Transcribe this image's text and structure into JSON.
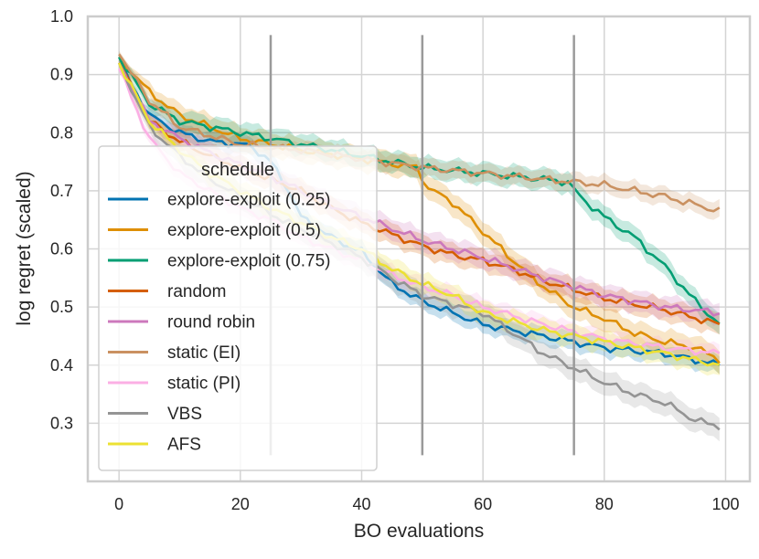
{
  "chart_data": {
    "type": "line",
    "title": "",
    "xlabel": "BO evaluations",
    "ylabel": "log regret (scaled)",
    "xlim": [
      -5,
      104
    ],
    "ylim": [
      0.2,
      1.0
    ],
    "xticks": [
      0,
      20,
      40,
      60,
      80,
      100
    ],
    "yticks": [
      0.3,
      0.4,
      0.5,
      0.6,
      0.7,
      0.8,
      0.9,
      1.0
    ],
    "xtick_labels": [
      "0",
      "20",
      "40",
      "60",
      "80",
      "100"
    ],
    "ytick_labels": [
      "0.3",
      "0.4",
      "0.5",
      "0.6",
      "0.7",
      "0.8",
      "0.9",
      "1.0"
    ],
    "grid": true,
    "vlines": {
      "x": [
        25,
        50,
        75
      ],
      "ymin": 0.245,
      "ymax": 0.968,
      "color": "#9a9a9a"
    },
    "legend": {
      "title": "schedule",
      "position": "lower-left"
    },
    "series": [
      {
        "name": "explore-exploit (0.25)",
        "color": "#0173b2",
        "band": 0.015,
        "points": [
          [
            0,
            0.92
          ],
          [
            5,
            0.83
          ],
          [
            10,
            0.8
          ],
          [
            15,
            0.785
          ],
          [
            20,
            0.78
          ],
          [
            22,
            0.775
          ],
          [
            25,
            0.75
          ],
          [
            28,
            0.7
          ],
          [
            30,
            0.655
          ],
          [
            35,
            0.62
          ],
          [
            40,
            0.595
          ],
          [
            45,
            0.54
          ],
          [
            50,
            0.51
          ],
          [
            55,
            0.49
          ],
          [
            60,
            0.47
          ],
          [
            70,
            0.45
          ],
          [
            80,
            0.43
          ],
          [
            90,
            0.42
          ],
          [
            99,
            0.4
          ]
        ]
      },
      {
        "name": "explore-exploit (0.5)",
        "color": "#de8f05",
        "band": 0.02,
        "points": [
          [
            0,
            0.93
          ],
          [
            5,
            0.87
          ],
          [
            10,
            0.83
          ],
          [
            15,
            0.81
          ],
          [
            20,
            0.79
          ],
          [
            30,
            0.77
          ],
          [
            40,
            0.755
          ],
          [
            49,
            0.74
          ],
          [
            51,
            0.705
          ],
          [
            55,
            0.68
          ],
          [
            60,
            0.63
          ],
          [
            65,
            0.58
          ],
          [
            70,
            0.535
          ],
          [
            75,
            0.5
          ],
          [
            80,
            0.48
          ],
          [
            85,
            0.455
          ],
          [
            90,
            0.44
          ],
          [
            95,
            0.43
          ],
          [
            99,
            0.41
          ]
        ]
      },
      {
        "name": "explore-exploit (0.75)",
        "color": "#029e73",
        "band": 0.018,
        "points": [
          [
            0,
            0.93
          ],
          [
            5,
            0.85
          ],
          [
            10,
            0.82
          ],
          [
            20,
            0.8
          ],
          [
            30,
            0.78
          ],
          [
            40,
            0.76
          ],
          [
            50,
            0.74
          ],
          [
            60,
            0.73
          ],
          [
            70,
            0.72
          ],
          [
            74,
            0.715
          ],
          [
            76,
            0.69
          ],
          [
            80,
            0.655
          ],
          [
            85,
            0.62
          ],
          [
            90,
            0.57
          ],
          [
            95,
            0.51
          ],
          [
            99,
            0.47
          ]
        ]
      },
      {
        "name": "random",
        "color": "#d55e00",
        "band": 0.018,
        "points": [
          [
            0,
            0.92
          ],
          [
            5,
            0.82
          ],
          [
            10,
            0.785
          ],
          [
            15,
            0.76
          ],
          [
            20,
            0.74
          ],
          [
            25,
            0.72
          ],
          [
            30,
            0.7
          ],
          [
            35,
            0.67
          ],
          [
            40,
            0.645
          ],
          [
            45,
            0.625
          ],
          [
            50,
            0.605
          ],
          [
            55,
            0.59
          ],
          [
            60,
            0.58
          ],
          [
            65,
            0.565
          ],
          [
            70,
            0.545
          ],
          [
            75,
            0.53
          ],
          [
            80,
            0.515
          ],
          [
            90,
            0.495
          ],
          [
            99,
            0.47
          ]
        ]
      },
      {
        "name": "round robin",
        "color": "#cc78bc",
        "band": 0.018,
        "points": [
          [
            0,
            0.92
          ],
          [
            5,
            0.82
          ],
          [
            10,
            0.79
          ],
          [
            15,
            0.765
          ],
          [
            20,
            0.745
          ],
          [
            25,
            0.725
          ],
          [
            30,
            0.7
          ],
          [
            35,
            0.675
          ],
          [
            40,
            0.655
          ],
          [
            45,
            0.635
          ],
          [
            50,
            0.615
          ],
          [
            55,
            0.6
          ],
          [
            60,
            0.585
          ],
          [
            70,
            0.55
          ],
          [
            80,
            0.52
          ],
          [
            90,
            0.5
          ],
          [
            99,
            0.49
          ]
        ]
      },
      {
        "name": "static (EI)",
        "color": "#ca9161",
        "band": 0.015,
        "points": [
          [
            0,
            0.935
          ],
          [
            5,
            0.855
          ],
          [
            10,
            0.81
          ],
          [
            15,
            0.795
          ],
          [
            20,
            0.78
          ],
          [
            25,
            0.775
          ],
          [
            30,
            0.77
          ],
          [
            40,
            0.755
          ],
          [
            50,
            0.74
          ],
          [
            60,
            0.73
          ],
          [
            70,
            0.72
          ],
          [
            80,
            0.71
          ],
          [
            90,
            0.69
          ],
          [
            99,
            0.665
          ]
        ]
      },
      {
        "name": "static (PI)",
        "color": "#fbafe4",
        "band": 0.015,
        "points": [
          [
            0,
            0.91
          ],
          [
            5,
            0.79
          ],
          [
            10,
            0.73
          ],
          [
            15,
            0.7
          ],
          [
            20,
            0.67
          ],
          [
            25,
            0.65
          ],
          [
            30,
            0.62
          ],
          [
            35,
            0.6
          ],
          [
            40,
            0.58
          ],
          [
            45,
            0.555
          ],
          [
            50,
            0.535
          ],
          [
            55,
            0.52
          ],
          [
            60,
            0.5
          ],
          [
            70,
            0.47
          ],
          [
            80,
            0.445
          ],
          [
            90,
            0.43
          ],
          [
            99,
            0.42
          ]
        ]
      },
      {
        "name": "VBS",
        "color": "#949494",
        "band": 0.02,
        "points": [
          [
            0,
            0.92
          ],
          [
            5,
            0.81
          ],
          [
            10,
            0.76
          ],
          [
            15,
            0.72
          ],
          [
            20,
            0.69
          ],
          [
            25,
            0.66
          ],
          [
            30,
            0.635
          ],
          [
            35,
            0.61
          ],
          [
            40,
            0.585
          ],
          [
            45,
            0.55
          ],
          [
            50,
            0.52
          ],
          [
            55,
            0.505
          ],
          [
            60,
            0.49
          ],
          [
            65,
            0.455
          ],
          [
            70,
            0.42
          ],
          [
            75,
            0.395
          ],
          [
            80,
            0.37
          ],
          [
            85,
            0.35
          ],
          [
            90,
            0.335
          ],
          [
            95,
            0.305
          ],
          [
            99,
            0.295
          ]
        ]
      },
      {
        "name": "AFS",
        "color": "#ece133",
        "band": 0.018,
        "points": [
          [
            0,
            0.92
          ],
          [
            5,
            0.82
          ],
          [
            10,
            0.77
          ],
          [
            15,
            0.73
          ],
          [
            20,
            0.7
          ],
          [
            25,
            0.67
          ],
          [
            30,
            0.645
          ],
          [
            35,
            0.62
          ],
          [
            40,
            0.6
          ],
          [
            45,
            0.565
          ],
          [
            50,
            0.54
          ],
          [
            55,
            0.52
          ],
          [
            60,
            0.49
          ],
          [
            65,
            0.475
          ],
          [
            70,
            0.46
          ],
          [
            80,
            0.44
          ],
          [
            90,
            0.42
          ],
          [
            99,
            0.4
          ]
        ]
      }
    ]
  }
}
